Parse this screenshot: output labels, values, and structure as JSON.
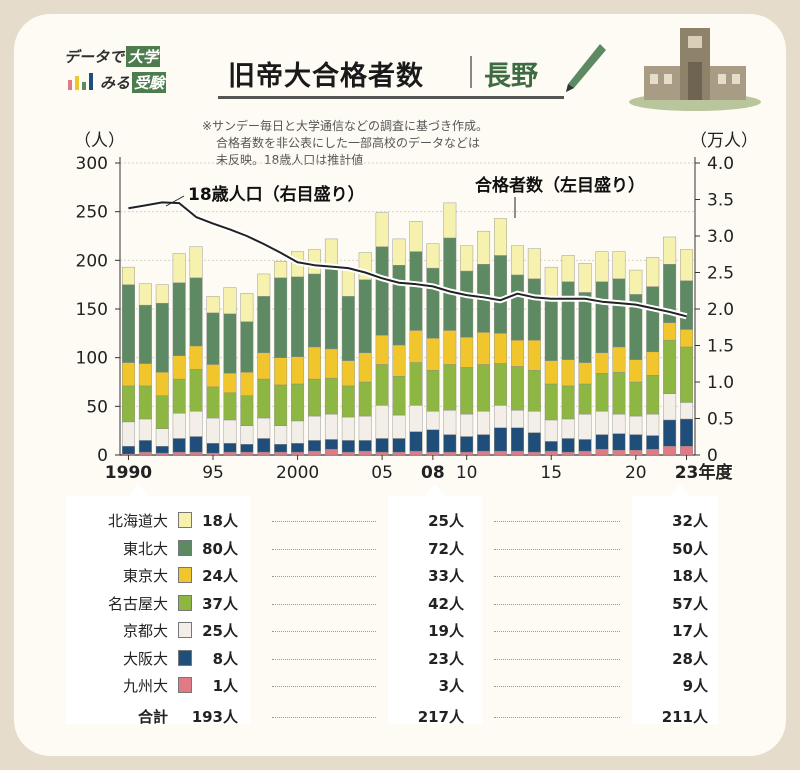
{
  "header": {
    "logo_line1": "データで",
    "logo_tag1": "大学",
    "logo_line2": "みる",
    "logo_tag2": "受験",
    "title": "旧帝大合格者数",
    "region": "長野"
  },
  "note": [
    "※サンデー毎日と大学通信などの調査に基づき作成。",
    "合格者数を非公表にした一部高校のデータなどは",
    "未反映。18歳人口は推計値"
  ],
  "chart_data": {
    "type": "bar",
    "stacked": true,
    "left_axis_unit": "（人）",
    "right_axis_unit": "（万人）",
    "x_axis_suffix": "年度",
    "ylim": [
      0,
      300
    ],
    "y2lim": [
      0,
      4.0
    ],
    "left_ticks": [
      "0",
      "50",
      "100",
      "150",
      "200",
      "250",
      "300"
    ],
    "right_ticks": [
      "0",
      "0.5",
      "1.0",
      "1.5",
      "2.0",
      "2.5",
      "3.0",
      "3.5",
      "4.0"
    ],
    "x_tick_labels": [
      {
        "year": 1990,
        "label": "1990",
        "bold": true
      },
      {
        "year": 1995,
        "label": "95",
        "bold": false
      },
      {
        "year": 2000,
        "label": "2000",
        "bold": false
      },
      {
        "year": 2005,
        "label": "05",
        "bold": false
      },
      {
        "year": 2008,
        "label": "08",
        "bold": true
      },
      {
        "year": 2010,
        "label": "10",
        "bold": false
      },
      {
        "year": 2015,
        "label": "15",
        "bold": false
      },
      {
        "year": 2020,
        "label": "20",
        "bold": false
      },
      {
        "year": 2023,
        "label": "23",
        "bold": true
      }
    ],
    "annotations": {
      "population_line": "18歳人口（右目盛り）",
      "passers_bars": "合格者数（左目盛り）"
    },
    "years": [
      1990,
      1991,
      1992,
      1993,
      1994,
      1995,
      1996,
      1997,
      1998,
      1999,
      2000,
      2001,
      2002,
      2003,
      2004,
      2005,
      2006,
      2007,
      2008,
      2009,
      2010,
      2011,
      2012,
      2013,
      2014,
      2015,
      2016,
      2017,
      2018,
      2019,
      2020,
      2021,
      2022,
      2023
    ],
    "series": [
      {
        "name": "九州大",
        "color": "#e07b85",
        "values": [
          1,
          3,
          2,
          3,
          3,
          2,
          3,
          3,
          3,
          3,
          3,
          4,
          6,
          3,
          4,
          3,
          3,
          4,
          3,
          3,
          3,
          4,
          4,
          4,
          3,
          4,
          3,
          4,
          6,
          5,
          5,
          6,
          9,
          9
        ]
      },
      {
        "name": "大阪大",
        "color": "#1f4e7a",
        "values": [
          8,
          12,
          7,
          14,
          16,
          10,
          9,
          8,
          14,
          8,
          9,
          11,
          10,
          12,
          11,
          14,
          14,
          20,
          23,
          18,
          16,
          17,
          24,
          24,
          20,
          10,
          14,
          12,
          15,
          17,
          16,
          14,
          27,
          28
        ]
      },
      {
        "name": "京都大",
        "color": "#f3efe8",
        "values": [
          25,
          22,
          18,
          26,
          26,
          26,
          24,
          19,
          21,
          19,
          23,
          25,
          26,
          24,
          25,
          34,
          24,
          27,
          19,
          25,
          23,
          24,
          23,
          18,
          22,
          22,
          20,
          26,
          24,
          20,
          19,
          22,
          27,
          17
        ]
      },
      {
        "name": "名古屋大",
        "color": "#8db642",
        "values": [
          37,
          34,
          34,
          35,
          43,
          32,
          28,
          31,
          40,
          42,
          38,
          38,
          37,
          32,
          35,
          42,
          40,
          44,
          42,
          47,
          48,
          48,
          43,
          45,
          42,
          37,
          34,
          31,
          39,
          43,
          35,
          40,
          55,
          57
        ]
      },
      {
        "name": "東京大",
        "color": "#f1c62d",
        "values": [
          24,
          23,
          24,
          24,
          24,
          23,
          20,
          24,
          27,
          28,
          28,
          33,
          30,
          26,
          30,
          30,
          32,
          33,
          33,
          35,
          31,
          33,
          31,
          27,
          31,
          24,
          27,
          22,
          21,
          26,
          23,
          24,
          18,
          18
        ]
      },
      {
        "name": "東北大",
        "color": "#5d8a63",
        "values": [
          80,
          60,
          71,
          75,
          70,
          53,
          61,
          52,
          58,
          82,
          82,
          75,
          87,
          66,
          75,
          91,
          82,
          81,
          72,
          95,
          68,
          70,
          80,
          67,
          63,
          66,
          80,
          72,
          73,
          70,
          67,
          67,
          60,
          50
        ]
      },
      {
        "name": "北海道大",
        "color": "#f6f1ad",
        "values": [
          18,
          22,
          19,
          30,
          32,
          17,
          27,
          29,
          23,
          17,
          26,
          25,
          26,
          27,
          28,
          35,
          27,
          31,
          25,
          36,
          26,
          34,
          38,
          30,
          31,
          30,
          27,
          30,
          31,
          28,
          25,
          30,
          28,
          32
        ]
      }
    ],
    "population_man": [
      3.38,
      3.42,
      3.46,
      3.45,
      3.26,
      3.17,
      3.09,
      3.0,
      2.89,
      2.77,
      2.64,
      2.6,
      2.58,
      2.56,
      2.5,
      2.42,
      2.36,
      2.34,
      2.31,
      2.24,
      2.19,
      2.16,
      2.12,
      2.21,
      2.16,
      2.14,
      2.14,
      2.14,
      2.1,
      2.08,
      2.06,
      2.01,
      1.96,
      1.9
    ]
  },
  "table": {
    "highlight_years": [
      "1990",
      "08",
      "23"
    ],
    "rows": [
      {
        "label": "北海道大",
        "color": "#f6f1ad",
        "v1990": "18人",
        "v2008": "25人",
        "v2023": "32人"
      },
      {
        "label": "東北大",
        "color": "#5d8a63",
        "v1990": "80人",
        "v2008": "72人",
        "v2023": "50人"
      },
      {
        "label": "東京大",
        "color": "#f1c62d",
        "v1990": "24人",
        "v2008": "33人",
        "v2023": "18人"
      },
      {
        "label": "名古屋大",
        "color": "#8db642",
        "v1990": "37人",
        "v2008": "42人",
        "v2023": "57人"
      },
      {
        "label": "京都大",
        "color": "#f3efe8",
        "v1990": "25人",
        "v2008": "19人",
        "v2023": "17人"
      },
      {
        "label": "大阪大",
        "color": "#1f4e7a",
        "v1990": "8人",
        "v2008": "23人",
        "v2023": "28人"
      },
      {
        "label": "九州大",
        "color": "#e07b85",
        "v1990": "1人",
        "v2008": "3人",
        "v2023": "9人"
      }
    ],
    "total": {
      "label": "合計",
      "v1990": "193人",
      "v2008": "217人",
      "v2023": "211人"
    }
  }
}
